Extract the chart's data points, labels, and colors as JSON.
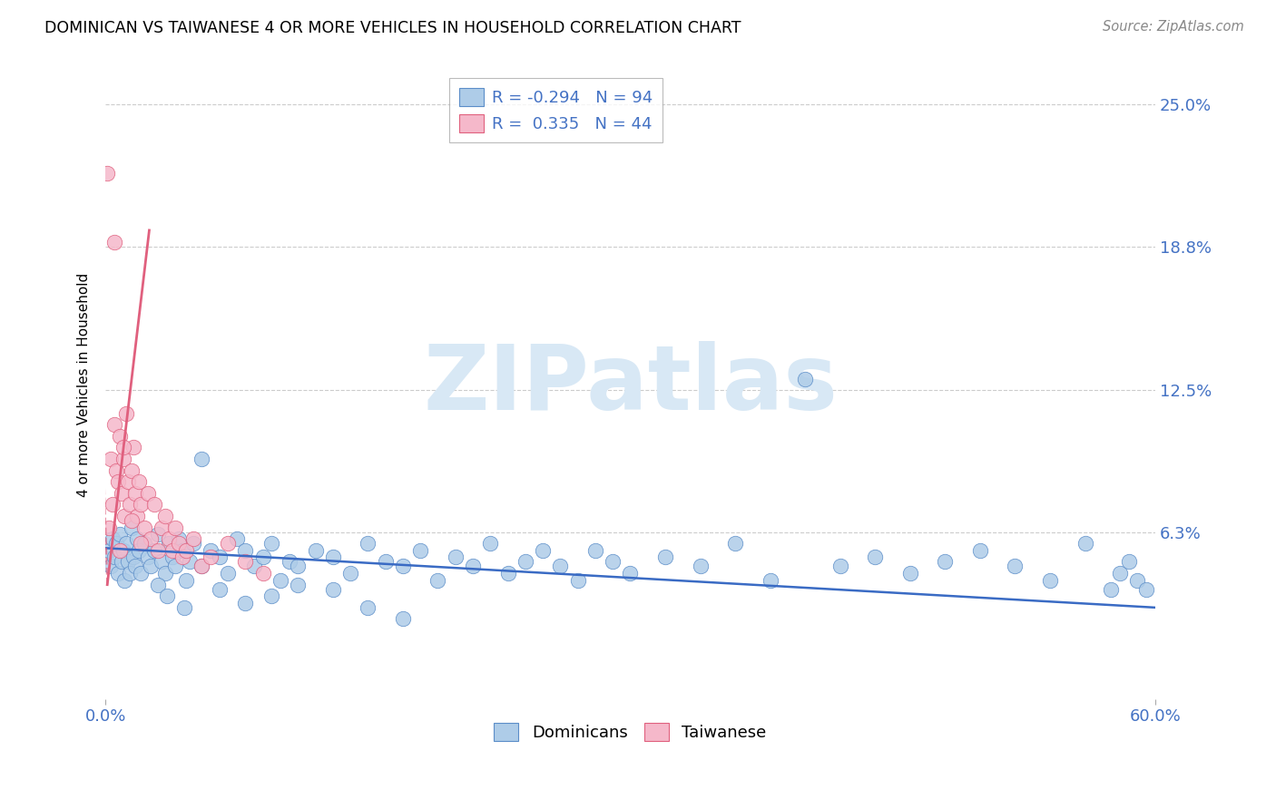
{
  "title": "DOMINICAN VS TAIWANESE 4 OR MORE VEHICLES IN HOUSEHOLD CORRELATION CHART",
  "source": "Source: ZipAtlas.com",
  "ylabel": "4 or more Vehicles in Household",
  "ytick_labels": [
    "6.3%",
    "12.5%",
    "18.8%",
    "25.0%"
  ],
  "ytick_values": [
    0.063,
    0.125,
    0.188,
    0.25
  ],
  "xmin": 0.0,
  "xmax": 0.6,
  "ymin": -0.01,
  "ymax": 0.265,
  "legend_blue_label": "Dominicans",
  "legend_pink_label": "Taiwanese",
  "R_blue": -0.294,
  "N_blue": 94,
  "R_pink": 0.335,
  "N_pink": 44,
  "blue_color": "#aecce8",
  "blue_edge_color": "#5b8dc8",
  "pink_color": "#f5b8ca",
  "pink_edge_color": "#e0607e",
  "blue_line_color": "#3a6bc4",
  "pink_line_color": "#e0607e",
  "blue_trend": [
    0.0,
    0.6,
    0.056,
    0.03
  ],
  "pink_trend_solid": [
    0.001,
    0.025,
    0.04,
    0.195
  ],
  "pink_trend_dashed": [
    0.001,
    -0.008,
    0.04,
    0.265
  ],
  "blue_scatter_x": [
    0.002,
    0.003,
    0.004,
    0.005,
    0.006,
    0.007,
    0.008,
    0.009,
    0.01,
    0.011,
    0.012,
    0.013,
    0.014,
    0.015,
    0.016,
    0.017,
    0.018,
    0.019,
    0.02,
    0.022,
    0.024,
    0.026,
    0.028,
    0.03,
    0.032,
    0.034,
    0.036,
    0.038,
    0.04,
    0.042,
    0.044,
    0.046,
    0.048,
    0.05,
    0.055,
    0.06,
    0.065,
    0.07,
    0.075,
    0.08,
    0.085,
    0.09,
    0.095,
    0.1,
    0.105,
    0.11,
    0.12,
    0.13,
    0.14,
    0.15,
    0.16,
    0.17,
    0.18,
    0.19,
    0.2,
    0.21,
    0.22,
    0.23,
    0.24,
    0.25,
    0.26,
    0.27,
    0.28,
    0.29,
    0.3,
    0.32,
    0.34,
    0.36,
    0.38,
    0.4,
    0.42,
    0.44,
    0.46,
    0.48,
    0.5,
    0.52,
    0.54,
    0.56,
    0.575,
    0.58,
    0.585,
    0.59,
    0.595,
    0.03,
    0.035,
    0.045,
    0.055,
    0.065,
    0.08,
    0.095,
    0.11,
    0.13,
    0.15,
    0.17
  ],
  "blue_scatter_y": [
    0.055,
    0.048,
    0.06,
    0.052,
    0.058,
    0.045,
    0.062,
    0.05,
    0.055,
    0.042,
    0.058,
    0.05,
    0.045,
    0.065,
    0.052,
    0.048,
    0.06,
    0.055,
    0.045,
    0.058,
    0.052,
    0.048,
    0.055,
    0.062,
    0.05,
    0.045,
    0.058,
    0.052,
    0.048,
    0.06,
    0.055,
    0.042,
    0.05,
    0.058,
    0.048,
    0.055,
    0.052,
    0.045,
    0.06,
    0.055,
    0.048,
    0.052,
    0.058,
    0.042,
    0.05,
    0.048,
    0.055,
    0.052,
    0.045,
    0.058,
    0.05,
    0.048,
    0.055,
    0.042,
    0.052,
    0.048,
    0.058,
    0.045,
    0.05,
    0.055,
    0.048,
    0.042,
    0.055,
    0.05,
    0.045,
    0.052,
    0.048,
    0.058,
    0.042,
    0.13,
    0.048,
    0.052,
    0.045,
    0.05,
    0.055,
    0.048,
    0.042,
    0.058,
    0.038,
    0.045,
    0.05,
    0.042,
    0.038,
    0.04,
    0.035,
    0.03,
    0.095,
    0.038,
    0.032,
    0.035,
    0.04,
    0.038,
    0.03,
    0.025
  ],
  "pink_scatter_x": [
    0.001,
    0.002,
    0.003,
    0.004,
    0.005,
    0.006,
    0.007,
    0.008,
    0.009,
    0.01,
    0.011,
    0.012,
    0.013,
    0.014,
    0.015,
    0.016,
    0.017,
    0.018,
    0.019,
    0.02,
    0.022,
    0.024,
    0.026,
    0.028,
    0.03,
    0.032,
    0.034,
    0.036,
    0.038,
    0.04,
    0.042,
    0.044,
    0.046,
    0.05,
    0.055,
    0.06,
    0.07,
    0.08,
    0.09,
    0.005,
    0.008,
    0.01,
    0.015,
    0.02
  ],
  "pink_scatter_y": [
    0.22,
    0.065,
    0.095,
    0.075,
    0.11,
    0.09,
    0.085,
    0.105,
    0.08,
    0.095,
    0.07,
    0.115,
    0.085,
    0.075,
    0.09,
    0.1,
    0.08,
    0.07,
    0.085,
    0.075,
    0.065,
    0.08,
    0.06,
    0.075,
    0.055,
    0.065,
    0.07,
    0.06,
    0.055,
    0.065,
    0.058,
    0.052,
    0.055,
    0.06,
    0.048,
    0.052,
    0.058,
    0.05,
    0.045,
    0.19,
    0.055,
    0.1,
    0.068,
    0.058
  ],
  "watermark_text": "ZIPatlas",
  "watermark_color": "#d8e8f5",
  "bg_color": "#ffffff"
}
